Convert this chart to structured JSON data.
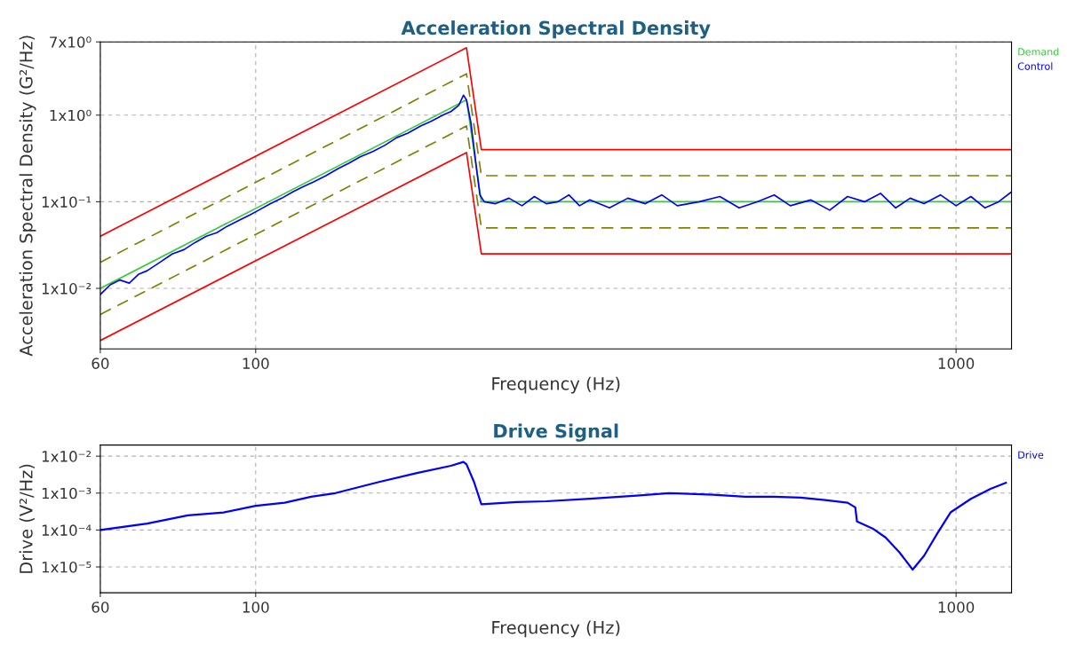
{
  "chart_data": [
    {
      "type": "line",
      "title": "Acceleration Spectral Density",
      "xlabel": "Frequency (Hz)",
      "ylabel": "Acceleration Spectral Density (G²/Hz)",
      "log": "xy",
      "xlim": [
        60,
        1200
      ],
      "ylim": [
        0.002,
        7
      ],
      "xticks": [
        60,
        100,
        1000
      ],
      "yticks": [
        {
          "value": 7,
          "label": "7x10⁰"
        },
        {
          "value": 1,
          "label": "1x10⁰"
        },
        {
          "value": 0.1,
          "label": "1x10⁻¹"
        },
        {
          "value": 0.01,
          "label": "1x10⁻²"
        }
      ],
      "grid": true,
      "legend": "top right",
      "series": [
        {
          "color": "#ff0000",
          "line_style": "solid",
          "x": [
            60,
            200,
            210,
            1200
          ],
          "values": [
            0.04,
            6,
            0.4,
            0.4
          ]
        },
        {
          "color": "#808000",
          "line_style": "dashed",
          "x": [
            60,
            200,
            210,
            1200
          ],
          "values": [
            0.02,
            3,
            0.2,
            0.2
          ]
        },
        {
          "color": "#808000",
          "line_style": "dashed",
          "x": [
            60,
            200,
            210,
            1200
          ],
          "values": [
            0.005,
            0.75,
            0.05,
            0.05
          ]
        },
        {
          "color": "#ff0000",
          "line_style": "solid",
          "x": [
            60,
            200,
            210,
            1200
          ],
          "values": [
            0.0025,
            0.37,
            0.025,
            0.025
          ]
        },
        {
          "name": "Demand",
          "color": "#33cc33",
          "line_style": "solid",
          "x": [
            60,
            200,
            210,
            1200
          ],
          "values": [
            0.01,
            1.5,
            0.1,
            0.1
          ]
        },
        {
          "name": "Control",
          "color": "#0000ff",
          "line_style": "solid",
          "x": [
            60,
            62,
            64,
            66,
            68,
            70,
            73,
            76,
            79,
            82,
            85,
            88,
            91,
            95,
            98,
            101,
            105,
            109,
            113,
            117,
            121,
            126,
            131,
            136,
            141,
            147,
            153,
            159,
            165,
            172,
            178,
            185,
            190,
            195,
            198,
            200,
            203,
            206,
            209,
            212,
            220,
            230,
            240,
            250,
            260,
            270,
            280,
            290,
            300,
            320,
            340,
            360,
            380,
            400,
            430,
            460,
            490,
            520,
            550,
            580,
            620,
            660,
            700,
            740,
            780,
            820,
            860,
            900,
            950,
            1000,
            1050,
            1100,
            1150,
            1200
          ],
          "values": [
            0.0085,
            0.011,
            0.0125,
            0.0115,
            0.0145,
            0.016,
            0.02,
            0.025,
            0.028,
            0.034,
            0.04,
            0.044,
            0.052,
            0.062,
            0.07,
            0.08,
            0.095,
            0.11,
            0.13,
            0.15,
            0.17,
            0.2,
            0.24,
            0.28,
            0.33,
            0.38,
            0.45,
            0.55,
            0.62,
            0.75,
            0.85,
            1.0,
            1.1,
            1.3,
            1.7,
            1.5,
            0.8,
            0.3,
            0.12,
            0.1,
            0.095,
            0.11,
            0.09,
            0.115,
            0.095,
            0.1,
            0.12,
            0.09,
            0.105,
            0.085,
            0.11,
            0.095,
            0.12,
            0.09,
            0.1,
            0.115,
            0.085,
            0.1,
            0.12,
            0.09,
            0.105,
            0.08,
            0.115,
            0.1,
            0.125,
            0.085,
            0.11,
            0.095,
            0.12,
            0.09,
            0.115,
            0.085,
            0.1,
            0.13
          ]
        }
      ]
    },
    {
      "type": "line",
      "title": "Drive Signal",
      "xlabel": "Frequency (Hz)",
      "ylabel": "Drive (V²/Hz)",
      "log": "xy",
      "xlim": [
        60,
        1200
      ],
      "ylim": [
        2e-06,
        0.02
      ],
      "xticks": [
        60,
        100,
        1000
      ],
      "yticks": [
        {
          "value": 0.01,
          "label": "1x10⁻²"
        },
        {
          "value": 0.001,
          "label": "1x10⁻³"
        },
        {
          "value": 0.0001,
          "label": "1x10⁻⁴"
        },
        {
          "value": 1e-05,
          "label": "1x10⁻⁵"
        }
      ],
      "grid": true,
      "legend": "top right",
      "series": [
        {
          "name": "Drive",
          "color": "#0000ff",
          "line_style": "solid",
          "x": [
            60,
            70,
            80,
            90,
            100,
            110,
            120,
            130,
            150,
            170,
            190,
            198,
            200,
            205,
            210,
            236,
            260,
            300,
            350,
            389,
            450,
            500,
            550,
            600,
            650,
            700,
            718,
            722,
            760,
            793,
            830,
            867,
            900,
            940,
            982,
            1050,
            1120,
            1178
          ],
          "values": [
            0.0001,
            0.00015,
            0.00025,
            0.0003,
            0.00045,
            0.00055,
            0.0008,
            0.001,
            0.002,
            0.0035,
            0.0055,
            0.007,
            0.006,
            0.002,
            0.0005,
            0.00057,
            0.0006,
            0.0007,
            0.00085,
            0.001,
            0.0009,
            0.0008,
            0.0008,
            0.00075,
            0.00065,
            0.00055,
            0.00041,
            0.00017,
            0.00011,
            6.3e-05,
            2.5e-05,
            8.5e-06,
            2e-05,
            8e-05,
            0.0003,
            0.0007,
            0.0013,
            0.0019
          ]
        }
      ]
    }
  ]
}
